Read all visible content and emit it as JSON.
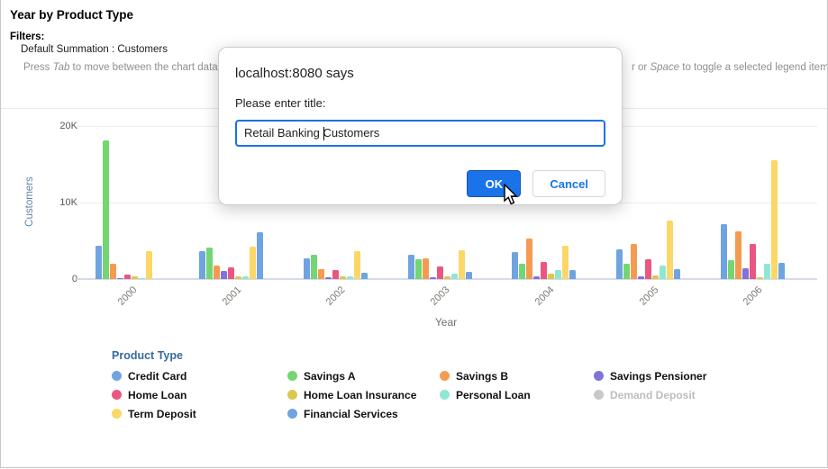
{
  "page": {
    "title": "Year by Product Type",
    "filters_label": "Filters:",
    "filters_value": "Default Summation : Customers",
    "instructions_left_parts": [
      {
        "text": "Press "
      },
      {
        "text": "Tab",
        "italic": true
      },
      {
        "text": " to move between the chart data, le"
      }
    ],
    "instructions_right_parts": [
      {
        "text": "r or "
      },
      {
        "text": "Space",
        "italic": true
      },
      {
        "text": " to toggle a selected legend item"
      }
    ]
  },
  "dialog": {
    "title": "localhost:8080 says",
    "prompt": "Please enter title:",
    "input_value": "Retail Banking Customers",
    "ok_label": "OK",
    "cancel_label": "Cancel",
    "accent_color": "#1a73e8"
  },
  "chart_data": {
    "type": "bar",
    "title": "Year by Product Type",
    "xlabel": "Year",
    "ylabel": "Customers",
    "ylim": [
      0,
      20000
    ],
    "yticks": [
      {
        "label": "0",
        "value": 0
      },
      {
        "label": "10K",
        "value": 10000
      },
      {
        "label": "20K",
        "value": 20000
      }
    ],
    "grid": true,
    "categories": [
      "2000",
      "2001",
      "2002",
      "2003",
      "2004",
      "2005",
      "2006"
    ],
    "series": [
      {
        "name": "Credit Card",
        "color": "#6fa4e0",
        "values": [
          4300,
          3600,
          2700,
          3200,
          3500,
          3900,
          7200
        ]
      },
      {
        "name": "Savings A",
        "color": "#73d673",
        "values": [
          18100,
          4100,
          3200,
          2600,
          2000,
          2000,
          2500
        ]
      },
      {
        "name": "Savings B",
        "color": "#f59b51",
        "values": [
          2000,
          1800,
          1300,
          2700,
          5300,
          4600,
          6200
        ]
      },
      {
        "name": "Savings Pensioner",
        "color": "#7f72db",
        "values": [
          150,
          1100,
          250,
          250,
          400,
          400,
          1400
        ]
      },
      {
        "name": "Home Loan",
        "color": "#ea5680",
        "values": [
          600,
          1500,
          1200,
          1600,
          2200,
          2600,
          4600
        ]
      },
      {
        "name": "Home Loan Insurance",
        "color": "#dcc84e",
        "values": [
          350,
          300,
          300,
          400,
          700,
          500,
          200
        ]
      },
      {
        "name": "Personal Loan",
        "color": "#8fe6d4",
        "values": [
          150,
          300,
          350,
          700,
          1200,
          1800,
          2000
        ]
      },
      {
        "name": "Term Deposit",
        "color": "#fbd768",
        "values": [
          3600,
          4200,
          3600,
          3800,
          4300,
          7600,
          15500
        ]
      },
      {
        "name": "Financial Services",
        "color": "#6fa4e0",
        "values": [
          0,
          6100,
          800,
          1000,
          1200,
          1300,
          2100
        ]
      }
    ],
    "legend": {
      "title": "Product Type",
      "position": "bottom-left",
      "items": [
        {
          "label": "Credit Card",
          "color": "#6fa4e0",
          "enabled": true
        },
        {
          "label": "Savings A",
          "color": "#73d673",
          "enabled": true
        },
        {
          "label": "Savings B",
          "color": "#f59b51",
          "enabled": true
        },
        {
          "label": "Savings Pensioner",
          "color": "#7f72db",
          "enabled": true
        },
        {
          "label": "Home Loan",
          "color": "#ea5680",
          "enabled": true
        },
        {
          "label": "Home Loan Insurance",
          "color": "#dcc84e",
          "enabled": true
        },
        {
          "label": "Personal Loan",
          "color": "#8fe6d4",
          "enabled": true
        },
        {
          "label": "Demand Deposit",
          "color": "#c9c9c9",
          "enabled": false
        },
        {
          "label": "Term Deposit",
          "color": "#fbd768",
          "enabled": true
        },
        {
          "label": "Financial Services",
          "color": "#6fa4e0",
          "enabled": true
        }
      ]
    }
  }
}
